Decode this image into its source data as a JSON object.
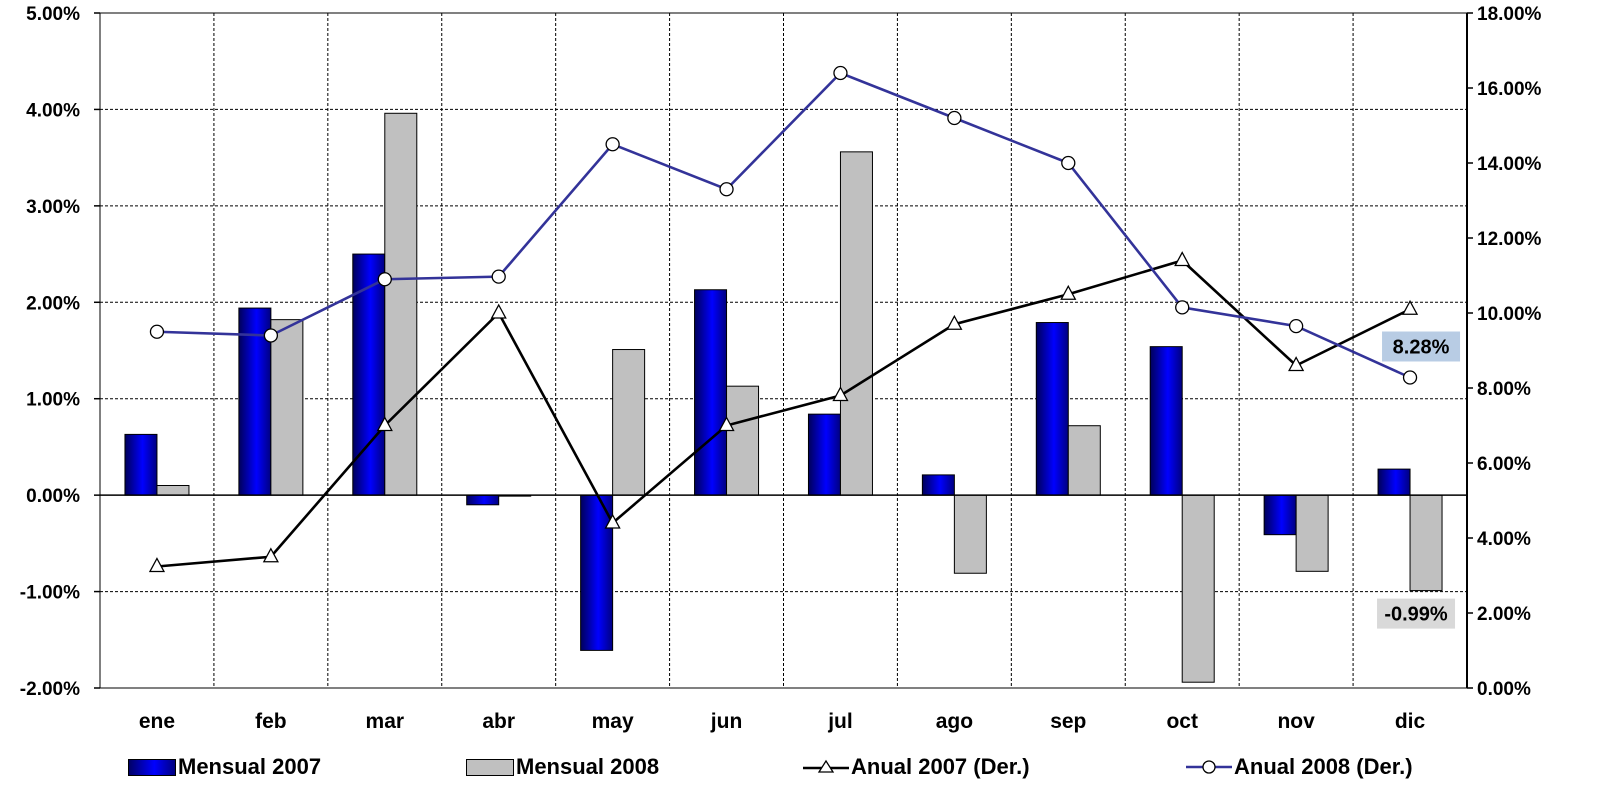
{
  "chart_data": {
    "type": "bar",
    "categories": [
      "ene",
      "feb",
      "mar",
      "abr",
      "may",
      "jun",
      "jul",
      "ago",
      "sep",
      "oct",
      "nov",
      "dic"
    ],
    "y_left": {
      "range": [
        -2.0,
        5.0
      ],
      "ticks": [
        "-2.00%",
        "-1.00%",
        "0.00%",
        "1.00%",
        "2.00%",
        "3.00%",
        "4.00%",
        "5.00%"
      ],
      "tick_values": [
        -2,
        -1,
        0,
        1,
        2,
        3,
        4,
        5
      ]
    },
    "y_right": {
      "range": [
        0.0,
        18.0
      ],
      "ticks": [
        "0.00%",
        "2.00%",
        "4.00%",
        "6.00%",
        "8.00%",
        "10.00%",
        "12.00%",
        "14.00%",
        "16.00%",
        "18.00%"
      ],
      "tick_values": [
        0,
        2,
        4,
        6,
        8,
        10,
        12,
        14,
        16,
        18
      ]
    },
    "series": [
      {
        "name": "Mensual 2007",
        "kind": "bar",
        "axis": "left",
        "color": "#0000cc",
        "values": [
          0.63,
          1.94,
          2.5,
          -0.1,
          -1.61,
          2.13,
          0.84,
          0.21,
          1.79,
          1.54,
          -0.41,
          0.27
        ]
      },
      {
        "name": "Mensual 2008",
        "kind": "bar",
        "axis": "left",
        "color": "#c0c0c0",
        "values": [
          0.1,
          1.82,
          3.96,
          -0.01,
          1.51,
          1.13,
          3.56,
          -0.81,
          0.72,
          -1.94,
          -0.79,
          -0.99
        ]
      },
      {
        "name": "Anual 2007 (Der.)",
        "kind": "line",
        "axis": "right",
        "color": "#000000",
        "marker": "triangle",
        "values": [
          3.24,
          3.5,
          7.0,
          10.0,
          4.4,
          7.0,
          7.8,
          9.7,
          10.5,
          11.4,
          8.6,
          10.1
        ]
      },
      {
        "name": "Anual 2008 (Der.)",
        "kind": "line",
        "axis": "right",
        "color": "#333399",
        "marker": "circle",
        "values": [
          9.5,
          9.4,
          10.9,
          10.97,
          14.5,
          13.3,
          16.4,
          15.2,
          14.0,
          10.15,
          9.65,
          8.28
        ]
      }
    ],
    "annotations": [
      {
        "text": "8.28%",
        "series": "Anual 2008 (Der.)",
        "category": "dic",
        "background": "#b8cce4"
      },
      {
        "text": "-0.99%",
        "series": "Mensual 2008",
        "category": "dic",
        "background": "#d9d9d9"
      }
    ],
    "grid": true,
    "legend_position": "bottom"
  }
}
